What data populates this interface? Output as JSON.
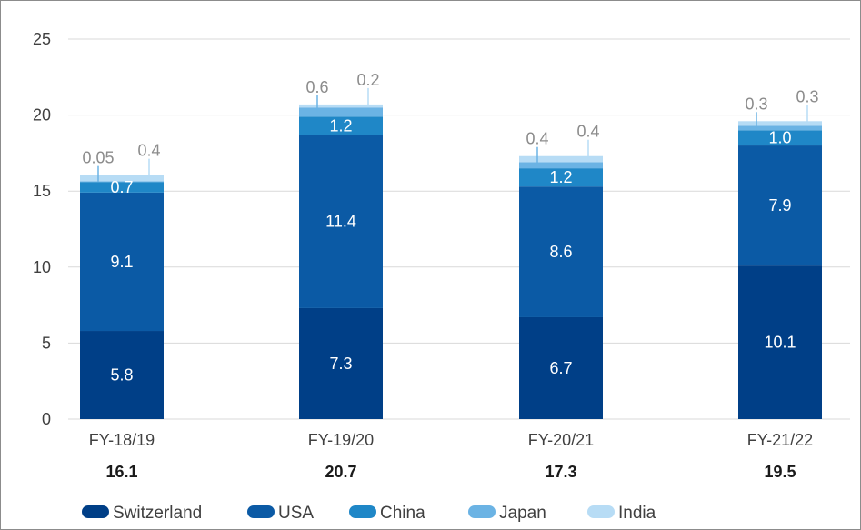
{
  "chart_data": {
    "type": "bar",
    "stacked": true,
    "categories": [
      "FY-18/19",
      "FY-19/20",
      "FY-20/21",
      "FY-21/22"
    ],
    "totals": [
      "16.1",
      "20.7",
      "17.3",
      "19.5"
    ],
    "ylim": [
      0,
      25
    ],
    "yticks": [
      0,
      5,
      10,
      15,
      20,
      25
    ],
    "grid": true,
    "legend_position": "bottom",
    "series": [
      {
        "name": "Switzerland",
        "color": "#003f87",
        "values": [
          5.8,
          7.3,
          6.7,
          10.1
        ],
        "labels": [
          "5.8",
          "7.3",
          "6.7",
          "10.1"
        ]
      },
      {
        "name": "USA",
        "color": "#0b5aa5",
        "values": [
          9.1,
          11.4,
          8.6,
          7.9
        ],
        "labels": [
          "9.1",
          "11.4",
          "8.6",
          "7.9"
        ]
      },
      {
        "name": "China",
        "color": "#1f87c7",
        "values": [
          0.7,
          1.2,
          1.2,
          1.0
        ],
        "labels": [
          "0.7",
          "1.2",
          "1.2",
          "1.0"
        ]
      },
      {
        "name": "Japan",
        "color": "#6bb3e4",
        "values": [
          0.05,
          0.6,
          0.4,
          0.3
        ],
        "labels": [
          "0.05",
          "0.6",
          "0.4",
          "0.3"
        ]
      },
      {
        "name": "India",
        "color": "#b7dcf5",
        "values": [
          0.4,
          0.2,
          0.4,
          0.3
        ],
        "labels": [
          "0.4",
          "0.2",
          "0.4",
          "0.3"
        ]
      }
    ]
  }
}
